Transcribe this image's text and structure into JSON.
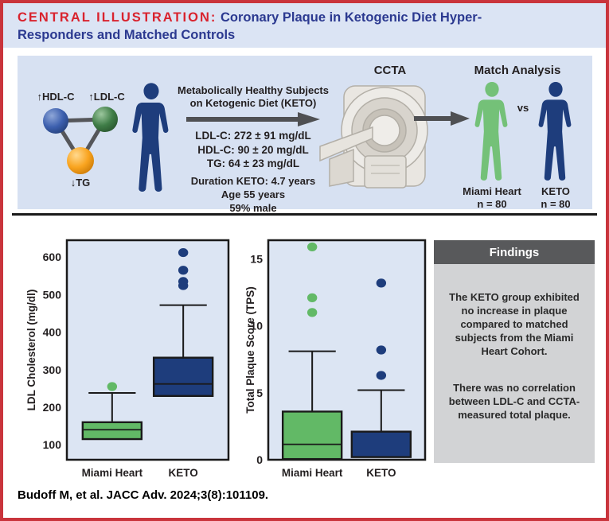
{
  "title": {
    "prefix": "CENTRAL ILLUSTRATION:",
    "line1": "Coronary Plaque in Ketogenic Diet Hyper-",
    "line2": "Responders and Matched Controls"
  },
  "top_panel": {
    "lipid_diagram": {
      "hdl_label": "↑HDL-C",
      "ldl_label": "↑LDL-C",
      "tg_label": "↓TG"
    },
    "subject_text": {
      "heading_line1": "Metabolically Healthy Subjects",
      "heading_line2": "on Ketogenic Diet (KETO)",
      "stats": [
        "LDL-C: 272 ± 91 mg/dL",
        "HDL-C: 90 ± 20 mg/dL",
        "TG: 64 ± 23 mg/dL"
      ],
      "details": [
        "Duration KETO: 4.7 years",
        "Age  55 years",
        "59% male"
      ]
    },
    "ccta_label": "CCTA",
    "match": {
      "title": "Match Analysis",
      "vs": "vs",
      "left": {
        "name": "Miami Heart",
        "n": "n = 80"
      },
      "right": {
        "name": "KETO",
        "n": "n = 80"
      }
    }
  },
  "chart_data": [
    {
      "type": "boxplot",
      "ylabel": "LDL Cholesterol (mg/dl)",
      "categories": [
        "Miami Heart",
        "KETO"
      ],
      "yticks": [
        100,
        200,
        300,
        400,
        500,
        600
      ],
      "ylim": [
        60,
        645
      ],
      "grid": false,
      "series": [
        {
          "name": "Miami Heart",
          "color": "#62b966",
          "q1": 115,
          "median": 140,
          "q3": 160,
          "whisker_high": 238,
          "outliers": [
            255
          ]
        },
        {
          "name": "KETO",
          "color": "#1e3d7c",
          "q1": 230,
          "median": 262,
          "q3": 332,
          "whisker_high": 472,
          "outliers": [
            524,
            535,
            565,
            612
          ]
        }
      ]
    },
    {
      "type": "boxplot",
      "ylabel": "Total Plaque Score (TPS)",
      "categories": [
        "Miami Heart",
        "KETO"
      ],
      "yticks": [
        0,
        5,
        10,
        15
      ],
      "ylim": [
        0,
        16.4
      ],
      "grid": false,
      "series": [
        {
          "name": "Miami Heart",
          "color": "#62b966",
          "q1": 0.05,
          "median": 1.15,
          "q3": 3.6,
          "whisker_high": 8.1,
          "outliers": [
            11.0,
            12.1,
            15.9
          ]
        },
        {
          "name": "KETO",
          "color": "#1e3d7c",
          "q1": 0.2,
          "median": 0.2,
          "q3": 2.1,
          "whisker_high": 5.2,
          "outliers": [
            6.3,
            8.2,
            13.2
          ]
        }
      ]
    }
  ],
  "findings": {
    "header": "Findings",
    "paragraphs": [
      "The KETO group exhibited no increase in plaque compared to matched subjects from the Miami Heart Cohort.",
      "There was no correlation between LDL-C and CCTA-measured total plaque."
    ]
  },
  "citation": "Budoff M, et al. JACC Adv. 2024;3(8):101109.",
  "colors": {
    "border_red": "#c9343c",
    "title_red": "#d9232e",
    "title_blue": "#2b3990",
    "panel_bg": "#d7e1f2",
    "title_band_bg": "#dbe4f4",
    "chart_bg": "#dce5f3",
    "navy": "#1e3d7c",
    "green_box": "#62b966",
    "green_person": "#74c178",
    "orange": "#f9a41f",
    "blue_node": "#3c5fae",
    "green_node": "#3f7d47",
    "arrow_gray": "#4f5053",
    "findings_header_bg": "#58595b",
    "findings_body_bg": "#d2d3d5"
  }
}
